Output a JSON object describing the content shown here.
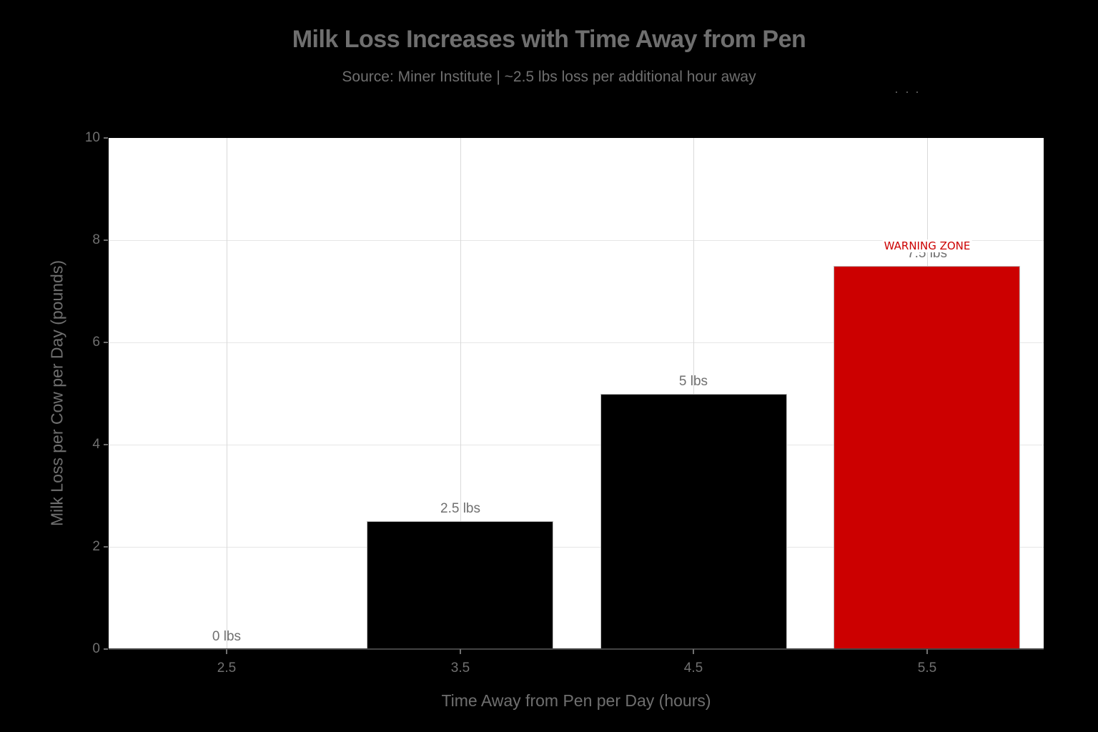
{
  "header": {
    "title": "Milk Loss Increases with Time Away from Pen",
    "subtitle": "Source: Miner Institute | ~2.5 lbs loss per additional hour away"
  },
  "axes": {
    "x_title": "Time Away from Pen per Day (hours)",
    "y_title": "Milk Loss per Cow per Day (pounds)",
    "x_ticks": [
      "2.5",
      "3.5",
      "4.5",
      "5.5"
    ],
    "y_ticks": [
      "0",
      "2",
      "4",
      "6",
      "8",
      "10"
    ]
  },
  "bars": [
    {
      "category": "2.5",
      "value": 0,
      "label": "0 lbs",
      "color": "#000000"
    },
    {
      "category": "3.5",
      "value": 2.5,
      "label": "2.5 lbs",
      "color": "#000000"
    },
    {
      "category": "4.5",
      "value": 5,
      "label": "5 lbs",
      "color": "#000000"
    },
    {
      "category": "5.5",
      "value": 7.5,
      "label": "7.5 lbs",
      "color": "#cc0000"
    }
  ],
  "annotation": {
    "text": "WARNING ZONE",
    "x": "5.5",
    "y": 7.9,
    "color": "#cc0000"
  },
  "colors": {
    "background": "#000000",
    "plot_background": "#ffffff",
    "default_bar": "#000000",
    "highlight_bar": "#cc0000",
    "text": "#707070"
  },
  "chart_data": {
    "type": "bar",
    "title": "Milk Loss Increases with Time Away from Pen",
    "subtitle": "Source: Miner Institute | ~2.5 lbs loss per additional hour away",
    "categories": [
      "2.5",
      "3.5",
      "4.5",
      "5.5"
    ],
    "values": [
      0,
      2.5,
      5,
      7.5
    ],
    "data_labels": [
      "0 lbs",
      "2.5 lbs",
      "5 lbs",
      "7.5 lbs"
    ],
    "bar_colors": [
      "#000000",
      "#000000",
      "#000000",
      "#cc0000"
    ],
    "xlabel": "Time Away from Pen per Day (hours)",
    "ylabel": "Milk Loss per Cow per Day (pounds)",
    "ylim": [
      0,
      10
    ],
    "yticks": [
      0,
      2,
      4,
      6,
      8,
      10
    ],
    "grid": true,
    "legend": null,
    "annotations": [
      {
        "text": "WARNING ZONE",
        "x": "5.5",
        "y": 7.9,
        "color": "#cc0000"
      }
    ]
  }
}
